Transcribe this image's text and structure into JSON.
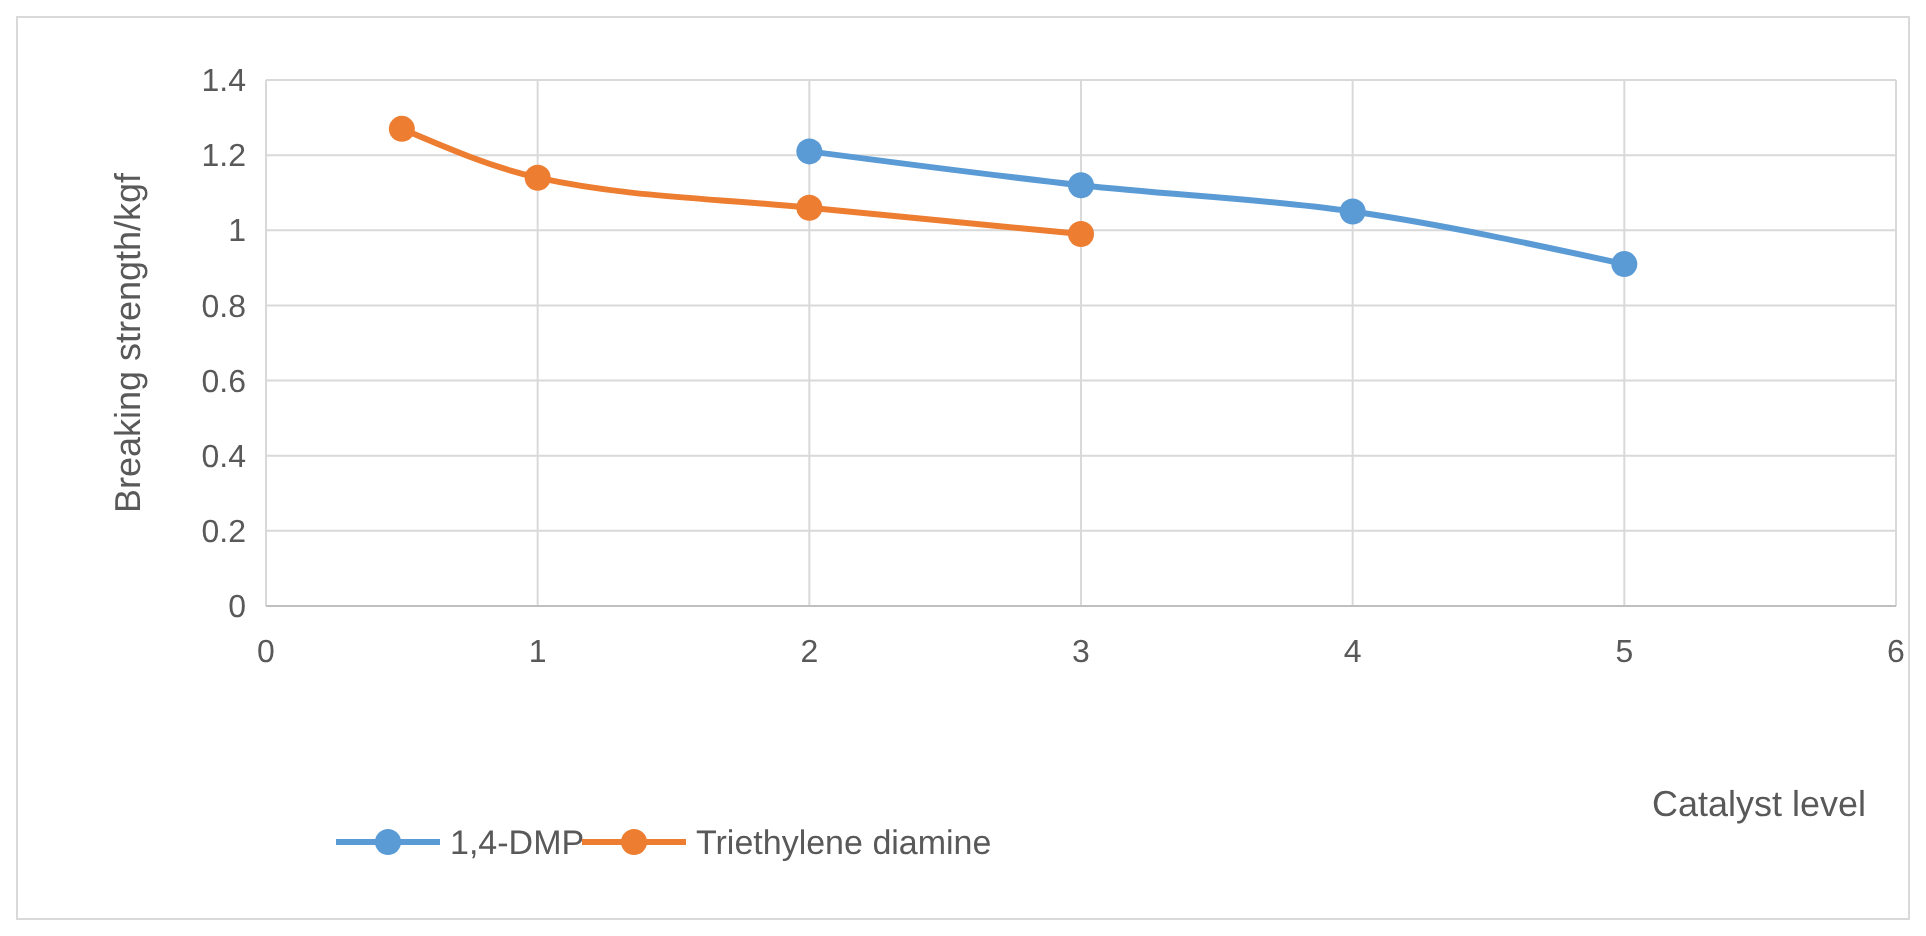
{
  "chart_data": {
    "type": "line",
    "xlabel": "Catalyst level",
    "ylabel": "Breaking strength/kgf",
    "series": [
      {
        "name": "1,4-DMP",
        "color": "#5b9bd5",
        "x": [
          2,
          3,
          4,
          5
        ],
        "values": [
          1.21,
          1.12,
          1.05,
          0.91
        ]
      },
      {
        "name": "Triethylene diamine",
        "color": "#ed7d31",
        "x": [
          0.5,
          1,
          2,
          3
        ],
        "values": [
          1.27,
          1.14,
          1.06,
          0.99
        ]
      }
    ],
    "xlim": [
      0,
      6
    ],
    "xticks": [
      0,
      1,
      2,
      3,
      4,
      5,
      6
    ],
    "ylim": [
      0,
      1.4
    ],
    "yticks": [
      0,
      0.2,
      0.4,
      0.6,
      0.8,
      1,
      1.2,
      1.4
    ],
    "grid": true,
    "legend": "bottom",
    "marker": "circle",
    "line_style": "solid"
  }
}
